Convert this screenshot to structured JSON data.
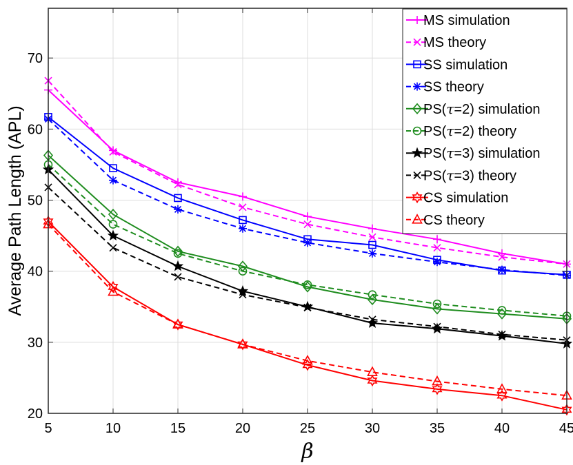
{
  "chart_data": {
    "type": "line",
    "xlabel": "β",
    "ylabel": "Average Path Length (APL)",
    "x": [
      5,
      10,
      15,
      20,
      25,
      30,
      35,
      40,
      45
    ],
    "xlim": [
      5,
      45
    ],
    "ylim": [
      20,
      77
    ],
    "xticks": [
      "5",
      "10",
      "15",
      "20",
      "25",
      "30",
      "35",
      "40",
      "45"
    ],
    "yticks": [
      "20",
      "30",
      "40",
      "50",
      "60",
      "70"
    ],
    "grid": true,
    "legend_position": "top-right",
    "series": [
      {
        "name": "MS simulation",
        "name_prefix": "MS simulation",
        "name_tau": "",
        "name_suffix": "",
        "color": "#ff00ff",
        "dash": "solid",
        "marker": "plus",
        "values": [
          65.5,
          57.0,
          52.5,
          50.5,
          47.7,
          46.0,
          44.5,
          42.5,
          41.0
        ]
      },
      {
        "name": "MS theory",
        "name_prefix": "MS theory",
        "name_tau": "",
        "name_suffix": "",
        "color": "#ff00ff",
        "dash": "dashed",
        "marker": "x",
        "values": [
          66.8,
          56.8,
          52.2,
          49.0,
          46.6,
          44.8,
          43.3,
          42.0,
          41.0
        ]
      },
      {
        "name": "SS simulation",
        "name_prefix": "SS simulation",
        "name_tau": "",
        "name_suffix": "",
        "color": "#0000ff",
        "dash": "solid",
        "marker": "square",
        "values": [
          61.7,
          54.5,
          50.3,
          47.2,
          44.5,
          43.7,
          41.6,
          40.1,
          39.5
        ]
      },
      {
        "name": "SS theory",
        "name_prefix": "SS theory",
        "name_tau": "",
        "name_suffix": "",
        "color": "#0000ff",
        "dash": "dashed",
        "marker": "asterisk",
        "values": [
          61.4,
          52.8,
          48.7,
          46.0,
          44.0,
          42.5,
          41.3,
          40.2,
          39.4
        ]
      },
      {
        "name": "PS(τ=2) simulation",
        "name_prefix": "PS(",
        "name_tau": "τ",
        "name_suffix": "=2) simulation",
        "color": "#1e8c1e",
        "dash": "solid",
        "marker": "diamond",
        "values": [
          56.3,
          48.0,
          42.8,
          40.7,
          37.8,
          36.0,
          34.7,
          34.0,
          33.3
        ]
      },
      {
        "name": "PS(τ=2) theory",
        "name_prefix": "PS(",
        "name_tau": "τ",
        "name_suffix": "=2) theory",
        "color": "#1e8c1e",
        "dash": "dashed",
        "marker": "circle",
        "values": [
          55.0,
          46.6,
          42.5,
          40.0,
          38.1,
          36.7,
          35.4,
          34.5,
          33.7
        ]
      },
      {
        "name": "PS(τ=3) simulation",
        "name_prefix": "PS(",
        "name_tau": "τ",
        "name_suffix": "=3) simulation",
        "color": "#000000",
        "dash": "solid",
        "marker": "star",
        "values": [
          54.3,
          45.0,
          40.7,
          37.2,
          35.0,
          32.7,
          31.9,
          30.9,
          29.8
        ]
      },
      {
        "name": "PS(τ=3) theory",
        "name_prefix": "PS(",
        "name_tau": "τ",
        "name_suffix": "=3) theory",
        "color": "#000000",
        "dash": "dashed",
        "marker": "x",
        "values": [
          51.8,
          43.3,
          39.2,
          36.7,
          34.9,
          33.2,
          32.2,
          31.1,
          30.3
        ]
      },
      {
        "name": "CS simulation",
        "name_prefix": "CS simulation",
        "name_tau": "",
        "name_suffix": "",
        "color": "#ff0000",
        "dash": "solid",
        "marker": "hexagram",
        "values": [
          47.0,
          37.8,
          32.5,
          29.7,
          26.8,
          24.6,
          23.4,
          22.5,
          20.5
        ]
      },
      {
        "name": "CS theory",
        "name_prefix": "CS theory",
        "name_tau": "",
        "name_suffix": "",
        "color": "#ff0000",
        "dash": "dashed",
        "marker": "triangle",
        "values": [
          46.6,
          37.1,
          32.5,
          29.7,
          27.4,
          25.8,
          24.5,
          23.4,
          22.5
        ]
      }
    ]
  }
}
